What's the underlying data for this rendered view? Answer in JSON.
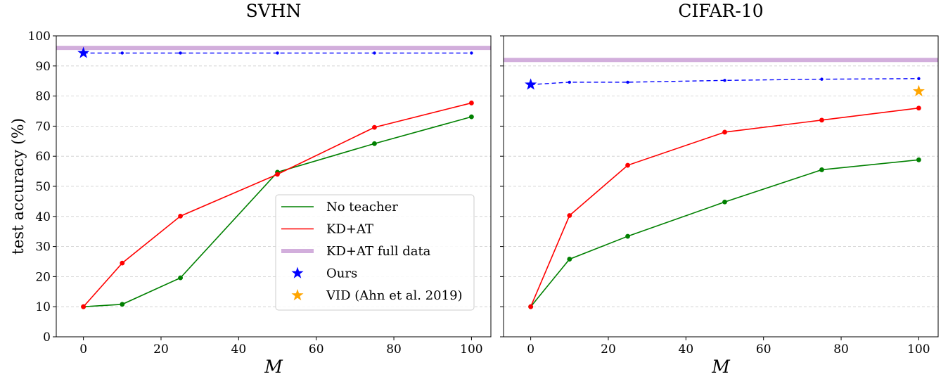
{
  "chart_data": [
    {
      "type": "line",
      "title": "SVHN",
      "xlabel": "M",
      "ylabel": "test accuracy (%)",
      "xlim": [
        -7,
        105
      ],
      "ylim": [
        0,
        100
      ],
      "xticks": [
        0,
        20,
        40,
        60,
        80,
        100
      ],
      "yticks": [
        0,
        10,
        20,
        30,
        40,
        50,
        60,
        70,
        80,
        90,
        100
      ],
      "grid": "horizontal",
      "legend": "lower-right",
      "series": [
        {
          "name": "No teacher",
          "color": "#008000",
          "style": "solid-dot",
          "x": [
            0,
            10,
            25,
            50,
            75,
            100
          ],
          "y": [
            10,
            10.8,
            19.6,
            54.7,
            64.2,
            73.1
          ]
        },
        {
          "name": "KD+AT",
          "color": "#ff0000",
          "style": "solid-dot",
          "x": [
            0,
            10,
            25,
            50,
            75,
            100
          ],
          "y": [
            10,
            24.5,
            40.1,
            54.0,
            69.6,
            77.7
          ]
        },
        {
          "name": "KD+AT full data",
          "color": "#d2aedc",
          "style": "hline",
          "y": 96.0
        },
        {
          "name": "Ours",
          "color": "#0000ff",
          "style": "dashed-dot",
          "x": [
            0,
            10,
            25,
            50,
            75,
            100
          ],
          "y": [
            94.3,
            94.3,
            94.3,
            94.3,
            94.3,
            94.3
          ],
          "star": {
            "x": 0,
            "y": 94.3
          }
        },
        {
          "name": "VID (Ahn et al. 2019)",
          "color": "#ffa500",
          "style": "star"
        }
      ]
    },
    {
      "type": "line",
      "title": "CIFAR-10",
      "xlabel": "M",
      "ylabel": "",
      "xlim": [
        -7,
        105
      ],
      "ylim": [
        0,
        100
      ],
      "xticks": [
        0,
        20,
        40,
        60,
        80,
        100
      ],
      "yticks": [
        0,
        10,
        20,
        30,
        40,
        50,
        60,
        70,
        80,
        90,
        100
      ],
      "grid": "horizontal",
      "series": [
        {
          "name": "No teacher",
          "color": "#008000",
          "style": "solid-dot",
          "x": [
            0,
            10,
            25,
            50,
            75,
            100
          ],
          "y": [
            10,
            25.8,
            33.4,
            44.8,
            55.5,
            58.8
          ]
        },
        {
          "name": "KD+AT",
          "color": "#ff0000",
          "style": "solid-dot",
          "x": [
            0,
            10,
            25,
            50,
            75,
            100
          ],
          "y": [
            10,
            40.3,
            57.0,
            68.0,
            72.0,
            76.0
          ]
        },
        {
          "name": "KD+AT full data",
          "color": "#d2aedc",
          "style": "hline",
          "y": 92.0
        },
        {
          "name": "Ours",
          "color": "#0000ff",
          "style": "dashed-dot",
          "x": [
            0,
            10,
            25,
            50,
            75,
            100
          ],
          "y": [
            83.8,
            84.6,
            84.6,
            85.2,
            85.6,
            85.8
          ],
          "star": {
            "x": 0,
            "y": 83.8
          }
        },
        {
          "name": "VID (Ahn et al. 2019)",
          "color": "#ffa500",
          "style": "star",
          "star": {
            "x": 100,
            "y": 81.6
          }
        }
      ]
    }
  ]
}
